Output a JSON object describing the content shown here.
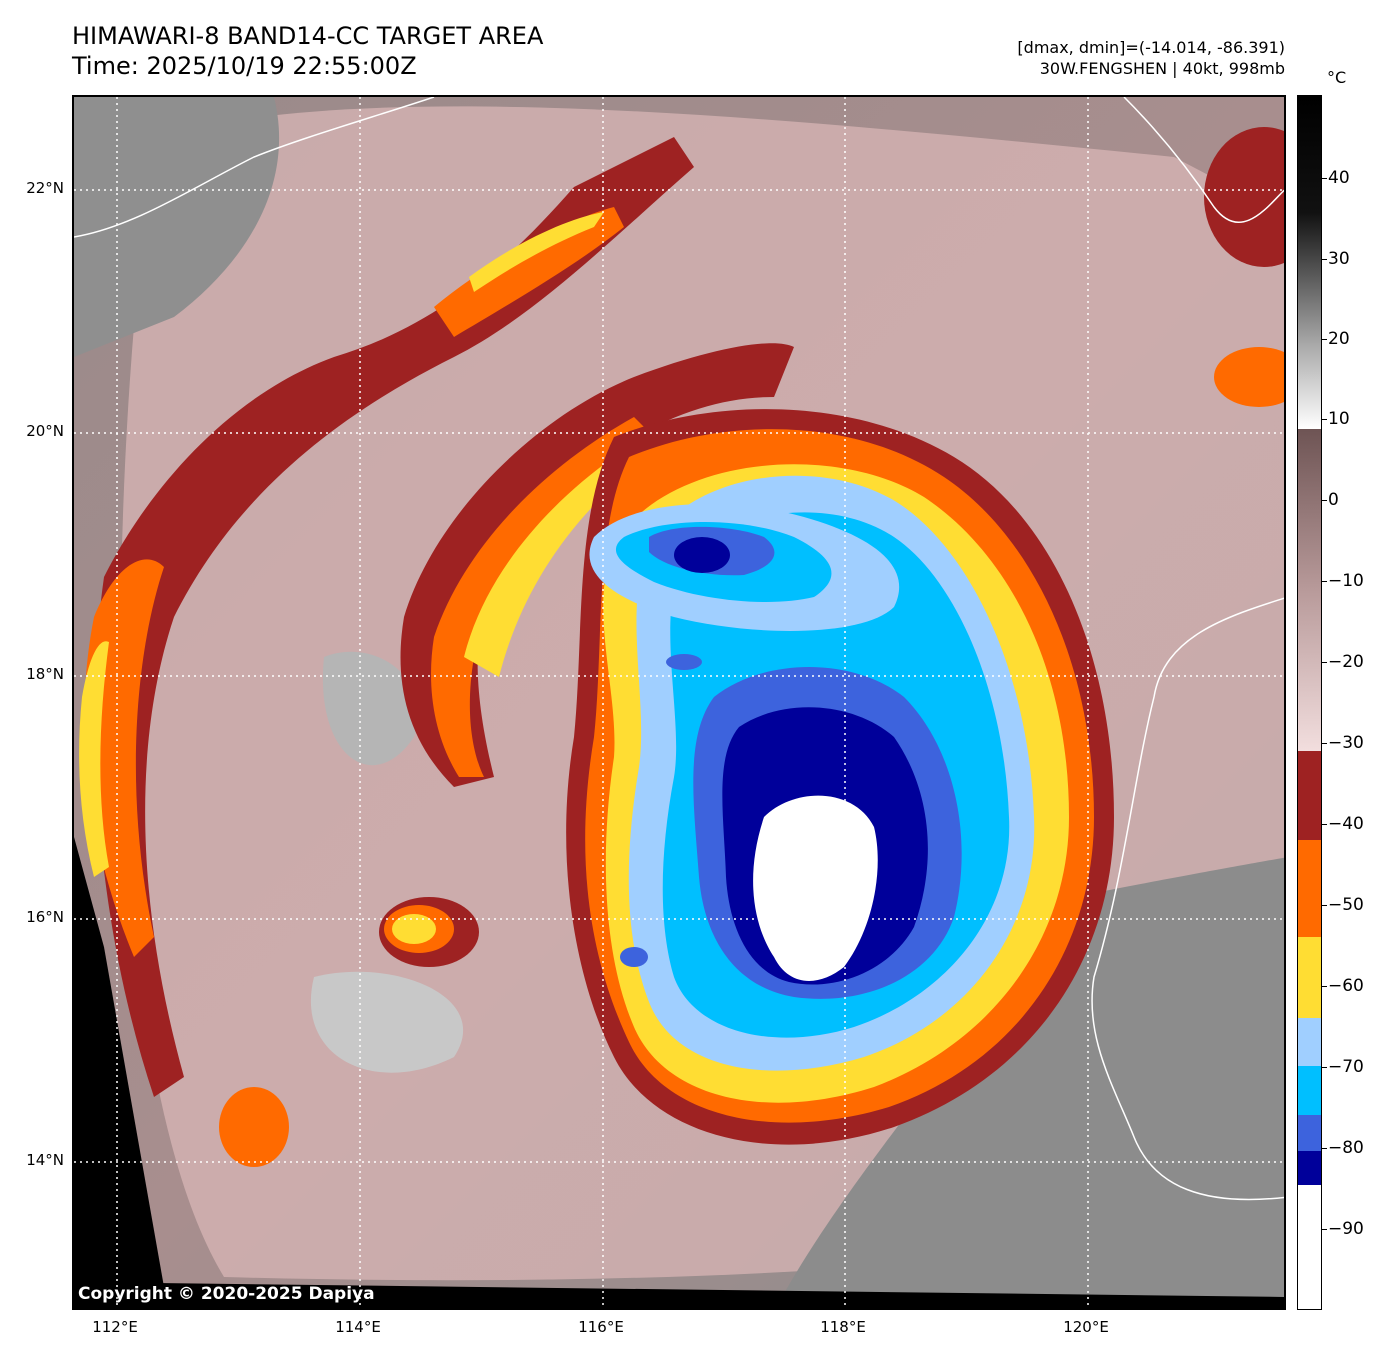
{
  "header": {
    "title_line1": "HIMAWARI-8 BAND14-CC TARGET AREA",
    "title_line2": "Time: 2025/10/19 22:55:00Z",
    "dmax_dmin": "[dmax, dmin]=(-14.014, -86.391)",
    "storm_info": "30W.FENGSHEN | 40kt, 998mb"
  },
  "map": {
    "lat_labels": [
      "22°N",
      "20°N",
      "18°N",
      "16°N",
      "14°N"
    ],
    "lon_labels": [
      "112°E",
      "114°E",
      "116°E",
      "118°E",
      "120°E"
    ],
    "copyright": "Copyright © 2020-2025 Dapiya",
    "colors": {
      "white": "#ffffff",
      "navy": "#00009a",
      "royal": "#3d63dd",
      "cyan": "#00bfff",
      "lightblue": "#a0cfff",
      "yellow": "#ffdd33",
      "orange": "#ff6a00",
      "darkred": "#9e2222",
      "pink": "#e8c8c8",
      "mauve": "#9a7676",
      "gray": "#8e8e8e"
    }
  },
  "colorbar": {
    "unit": "°C",
    "ticks": [
      "40",
      "30",
      "20",
      "10",
      "0",
      "−10",
      "−20",
      "−30",
      "−40",
      "−50",
      "−60",
      "−70",
      "−80",
      "−90"
    ]
  }
}
